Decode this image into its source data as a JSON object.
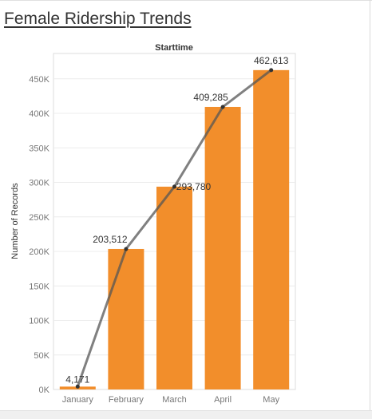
{
  "page": {
    "title": "Female Ridership Trends"
  },
  "chart_data": {
    "type": "bar",
    "column_header": "Starttime",
    "categories": [
      "January",
      "February",
      "March",
      "April",
      "May"
    ],
    "values": [
      4171,
      203512,
      293780,
      409285,
      462613
    ],
    "data_labels": [
      "4,171",
      "203,512",
      "293,780",
      "409,285",
      "462,613"
    ],
    "ylabel": "Number of Records",
    "ylim": [
      0,
      480000
    ],
    "yticks": [
      0,
      50000,
      100000,
      150000,
      200000,
      250000,
      300000,
      350000,
      400000,
      450000
    ],
    "ytick_labels": [
      "0K",
      "50K",
      "100K",
      "150K",
      "200K",
      "250K",
      "300K",
      "350K",
      "400K",
      "450K"
    ],
    "overlay": {
      "type": "line",
      "values": [
        4171,
        203512,
        293780,
        409285,
        462613
      ]
    },
    "colors": {
      "bar": "#f28e2b",
      "line": "#555555",
      "grid": "#ececec",
      "text": "#333333",
      "axis_text": "#777777"
    },
    "grid": true,
    "legend": "none"
  }
}
